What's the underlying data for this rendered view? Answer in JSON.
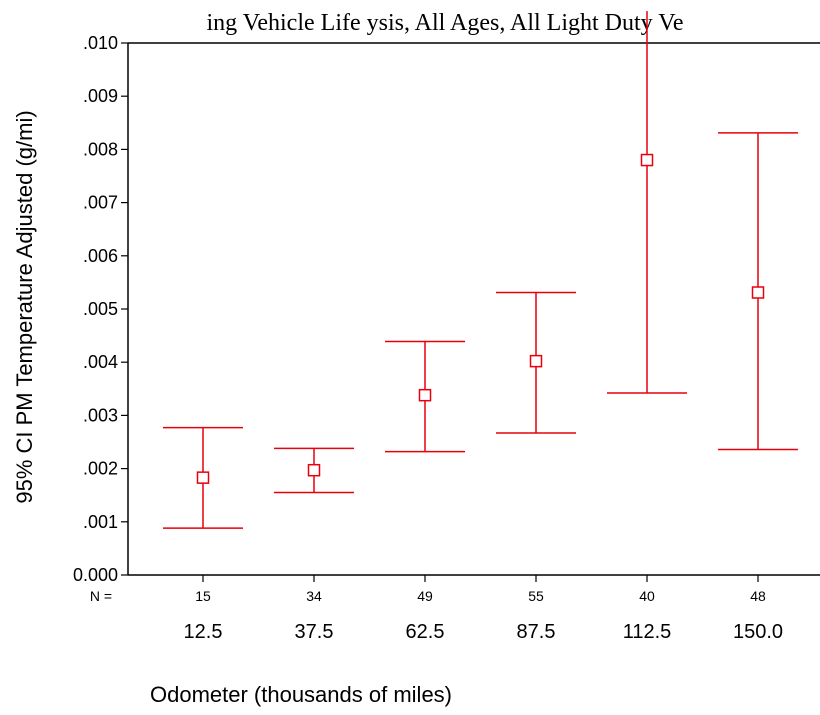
{
  "chart_data": {
    "type": "errorbar",
    "title": "ing Vehicle Life ysis, All Ages, All Light Duty Ve",
    "xlabel": "Odometer (thousands of miles)",
    "ylabel": "95% CI PM Temperature Adjusted (g/mi)",
    "ylim": [
      0.0,
      0.01
    ],
    "yticks": [
      ".010",
      ".009",
      ".008",
      ".007",
      ".006",
      ".005",
      ".004",
      ".003",
      ".002",
      ".001",
      "0.000"
    ],
    "n_prefix": "N =",
    "categories": [
      "12.5",
      "37.5",
      "62.5",
      "87.5",
      "112.5",
      "150.0"
    ],
    "n": [
      "15",
      "34",
      "49",
      "55",
      "40",
      "48"
    ],
    "mean": [
      0.00183,
      0.00197,
      0.00338,
      0.00402,
      0.0078,
      0.00531
    ],
    "lower": [
      0.00088,
      0.00155,
      0.00232,
      0.00267,
      0.00342,
      0.00236
    ],
    "upper": [
      0.00277,
      0.00238,
      0.00439,
      0.00531,
      0.0106,
      0.00831
    ],
    "color": "#e8000b",
    "grid": false
  }
}
